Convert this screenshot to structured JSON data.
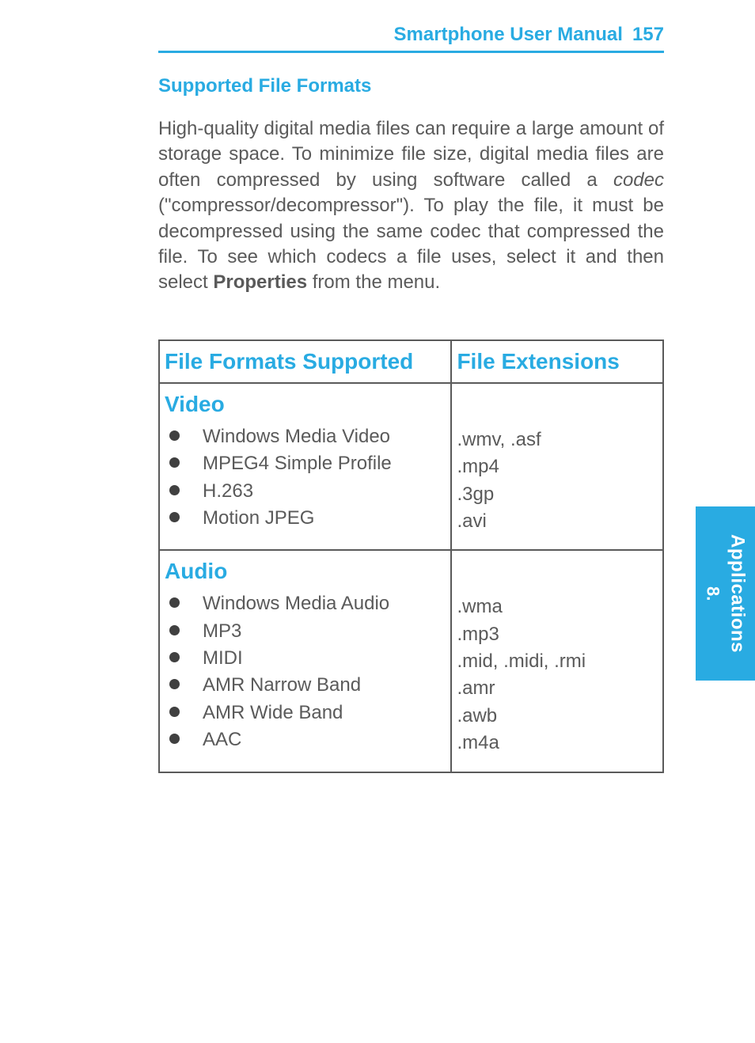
{
  "colors": {
    "accent": "#29abe2",
    "text": "#5a5a5a",
    "bullet": "#404040",
    "table_border": "#5a5a5a",
    "page_bg": "#ffffff",
    "tab_bg": "#29abe2",
    "tab_text": "#ffffff"
  },
  "typography": {
    "body_fontsize": 24,
    "header_fontsize": 28,
    "line_height": 1.35
  },
  "header": {
    "title": "Smartphone User Manual",
    "page_number": "157"
  },
  "side_tab": {
    "chapter_number": "8.",
    "chapter_title": "Applications"
  },
  "section": {
    "title": "Supported File Formats",
    "paragraph_parts": {
      "p1": "High-quality digital media files can require a large amount of storage space.  To minimize file size, digital media files are often compressed by using software called a ",
      "codec": "codec",
      "p2": " (\"compressor/decompressor\").  To play the file, it must be decompressed using the same codec that compressed the file.  To see which codecs a file uses, select it and then select ",
      "properties": "Properties",
      "p3": " from the menu."
    }
  },
  "table": {
    "columns": [
      {
        "label": "File Formats Supported",
        "width_pct": 58
      },
      {
        "label": "File Extensions",
        "width_pct": 42
      }
    ],
    "rows": [
      {
        "category": "Video",
        "formats": [
          "Windows Media Video",
          "MPEG4 Simple Profile",
          "H.263",
          "Motion JPEG"
        ],
        "extensions": [
          ".wmv, .asf",
          ".mp4",
          ".3gp",
          ".avi"
        ]
      },
      {
        "category": "Audio",
        "formats": [
          "Windows Media Audio",
          "MP3",
          "MIDI",
          "AMR Narrow Band",
          "AMR Wide Band",
          "AAC"
        ],
        "extensions": [
          ".wma",
          ".mp3",
          ".mid, .midi, .rmi",
          ".amr",
          ".awb",
          ".m4a"
        ]
      }
    ]
  }
}
